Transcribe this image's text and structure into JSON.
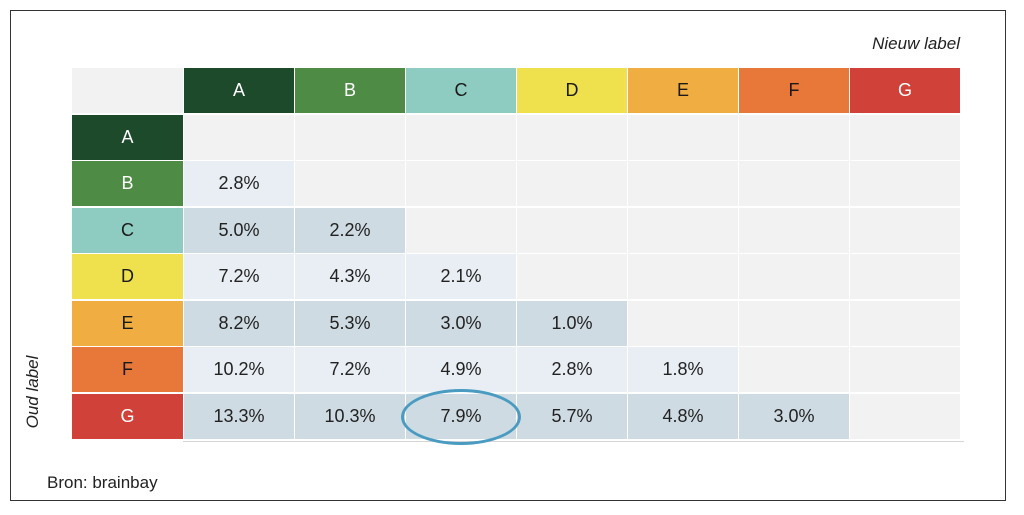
{
  "chart_data": {
    "type": "table",
    "title": "",
    "xlabel": "Nieuw label",
    "ylabel": "Oud label",
    "columns": [
      "A",
      "B",
      "C",
      "D",
      "E",
      "F",
      "G"
    ],
    "rows": [
      "A",
      "B",
      "C",
      "D",
      "E",
      "F",
      "G"
    ],
    "values": [
      [
        "",
        "",
        "",
        "",
        "",
        "",
        ""
      ],
      [
        "2.8%",
        "",
        "",
        "",
        "",
        "",
        ""
      ],
      [
        "5.0%",
        "2.2%",
        "",
        "",
        "",
        "",
        ""
      ],
      [
        "7.2%",
        "4.3%",
        "2.1%",
        "",
        "",
        "",
        ""
      ],
      [
        "8.2%",
        "5.3%",
        "3.0%",
        "1.0%",
        "",
        "",
        ""
      ],
      [
        "10.2%",
        "7.2%",
        "4.9%",
        "2.8%",
        "1.8%",
        "",
        ""
      ],
      [
        "13.3%",
        "10.3%",
        "7.9%",
        "5.7%",
        "4.8%",
        "3.0%",
        ""
      ]
    ],
    "highlighted_cell": {
      "row": "G",
      "column": "C"
    },
    "label_colors": {
      "A": "#1d4a2a",
      "B": "#4e8c45",
      "C": "#8ecbc1",
      "D": "#efe04e",
      "E": "#f0ae42",
      "F": "#e8783a",
      "G": "#d0413a"
    },
    "source": "Bron: brainbay"
  }
}
